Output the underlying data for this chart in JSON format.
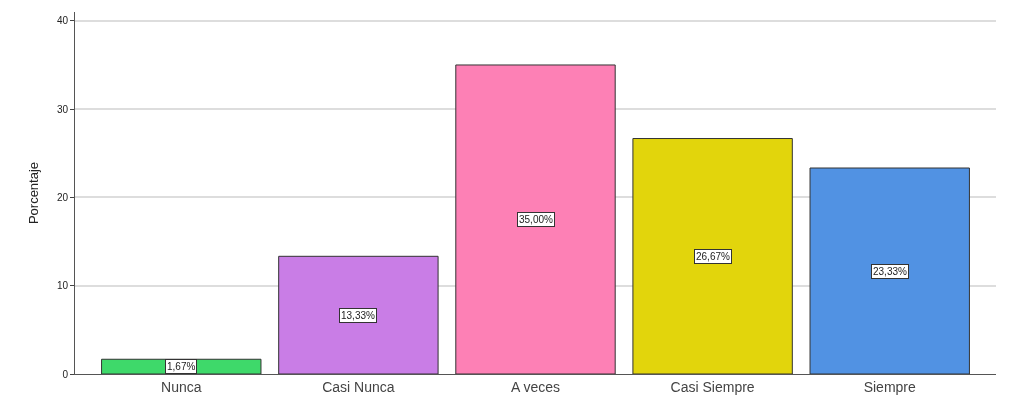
{
  "chart_data": {
    "type": "bar",
    "ylabel": "Porcentaje",
    "categories": [
      "Nunca",
      "Casi Nunca",
      "A veces",
      "Casi Siempre",
      "Siempre"
    ],
    "values": [
      1.67,
      13.33,
      35.0,
      26.67,
      23.33
    ],
    "value_labels": [
      "1,67%",
      "13,33%",
      "35,00%",
      "26,67%",
      "23,33%"
    ],
    "colors": [
      "#3ed96a",
      "#c97de6",
      "#fd80b5",
      "#e2d50c",
      "#5192e3"
    ],
    "ylim": [
      0,
      41
    ],
    "yticks": [
      0,
      10,
      20,
      30,
      40
    ],
    "grid": "y",
    "legend": false
  }
}
